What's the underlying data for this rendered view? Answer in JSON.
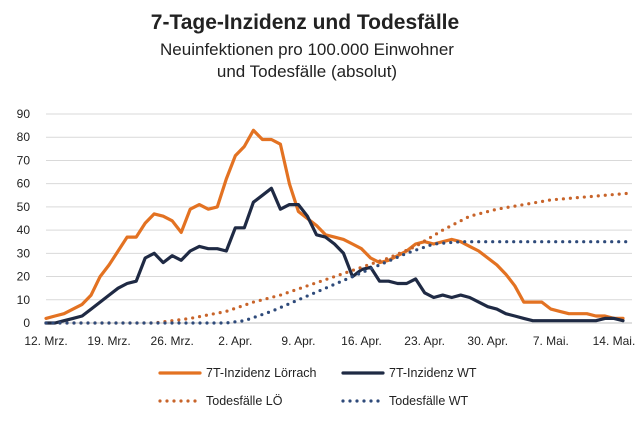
{
  "chart_data": {
    "type": "line",
    "title": "7-Tage-Inzidenz und Todesfälle",
    "subtitle_lines": [
      "Neuinfektionen pro 100.000 Einwohner",
      "und Todesfälle (absolut)"
    ],
    "xlabel": "",
    "ylabel": "",
    "ylim": [
      0,
      90
    ],
    "yticks": [
      0,
      10,
      20,
      30,
      40,
      50,
      60,
      70,
      80,
      90
    ],
    "x_range": [
      0,
      65
    ],
    "xticks": [
      {
        "label": "12. Mrz.",
        "day": 0
      },
      {
        "label": "19. Mrz.",
        "day": 7
      },
      {
        "label": "26. Mrz.",
        "day": 14
      },
      {
        "label": "2. Apr.",
        "day": 21
      },
      {
        "label": "9. Apr.",
        "day": 28
      },
      {
        "label": "16. Apr.",
        "day": 35
      },
      {
        "label": "23. Apr.",
        "day": 42
      },
      {
        "label": "30. Apr.",
        "day": 49
      },
      {
        "label": "7. Mai.",
        "day": 56
      },
      {
        "label": "14. Mai.",
        "day": 63
      }
    ],
    "grid": true,
    "legend_position": "bottom",
    "series": [
      {
        "name": "7T-Inzidenz Lörrach",
        "color": "#E37222",
        "style": "solid",
        "x": [
          0,
          1,
          2,
          3,
          4,
          5,
          6,
          7,
          8,
          9,
          10,
          11,
          12,
          13,
          14,
          15,
          16,
          17,
          18,
          19,
          20,
          21,
          22,
          23,
          24,
          25,
          26,
          27,
          28,
          29,
          30,
          31,
          32,
          33,
          34,
          35,
          36,
          37,
          38,
          39,
          40,
          41,
          42,
          43,
          44,
          45,
          46,
          47,
          48,
          49,
          50,
          51,
          52,
          53,
          54,
          55,
          56,
          57,
          58,
          59,
          60,
          61,
          62,
          63,
          64
        ],
        "values": [
          2,
          3,
          4,
          6,
          8,
          12,
          20,
          25,
          31,
          37,
          37,
          43,
          47,
          46,
          44,
          39,
          49,
          51,
          49,
          50,
          62,
          72,
          76,
          83,
          79,
          79,
          77,
          60,
          48,
          45,
          42,
          38,
          37,
          36,
          34,
          32,
          28,
          26,
          27,
          29,
          31,
          34,
          35,
          34,
          35,
          36,
          35,
          33,
          31,
          28,
          25,
          21,
          16,
          9,
          9,
          9,
          6,
          5,
          4,
          4,
          4,
          3,
          3,
          2,
          2
        ]
      },
      {
        "name": "7T-Inzidenz WT",
        "color": "#1F2A44",
        "style": "solid",
        "x": [
          0,
          1,
          2,
          3,
          4,
          5,
          6,
          7,
          8,
          9,
          10,
          11,
          12,
          13,
          14,
          15,
          16,
          17,
          18,
          19,
          20,
          21,
          22,
          23,
          24,
          25,
          26,
          27,
          28,
          29,
          30,
          31,
          32,
          33,
          34,
          35,
          36,
          37,
          38,
          39,
          40,
          41,
          42,
          43,
          44,
          45,
          46,
          47,
          48,
          49,
          50,
          51,
          52,
          53,
          54,
          55,
          56,
          57,
          58,
          59,
          60,
          61,
          62,
          63,
          64
        ],
        "values": [
          0,
          0,
          1,
          2,
          3,
          6,
          9,
          12,
          15,
          17,
          18,
          28,
          30,
          26,
          29,
          27,
          31,
          33,
          32,
          32,
          31,
          41,
          41,
          52,
          55,
          58,
          49,
          51,
          51,
          46,
          38,
          37,
          34,
          30,
          20,
          23,
          24,
          18,
          18,
          17,
          17,
          19,
          13,
          11,
          12,
          11,
          12,
          11,
          9,
          7,
          6,
          4,
          3,
          2,
          1,
          1,
          1,
          1,
          1,
          1,
          1,
          1,
          2,
          2,
          1
        ]
      },
      {
        "name": "Todesfälle LÖ",
        "color": "#C8642A",
        "style": "dotted",
        "x": [
          0,
          4,
          8,
          12,
          16,
          20,
          23,
          26,
          29,
          32,
          35,
          38,
          41,
          44,
          47,
          50,
          53,
          56,
          59,
          62,
          65
        ],
        "values": [
          0,
          0,
          0,
          0,
          2,
          5,
          9,
          12,
          16,
          20,
          24,
          28,
          33,
          40,
          46,
          49,
          51,
          53,
          54,
          55,
          56
        ]
      },
      {
        "name": "Todesfälle WT",
        "color": "#2E4A7A",
        "style": "dotted",
        "x": [
          0,
          5,
          10,
          15,
          20,
          22,
          25,
          28,
          31,
          34,
          37,
          40,
          43,
          46,
          50,
          55,
          60,
          65
        ],
        "values": [
          0,
          0,
          0,
          0,
          0,
          1,
          5,
          10,
          15,
          20,
          25,
          30,
          34,
          35,
          35,
          35,
          35,
          35
        ]
      }
    ]
  }
}
